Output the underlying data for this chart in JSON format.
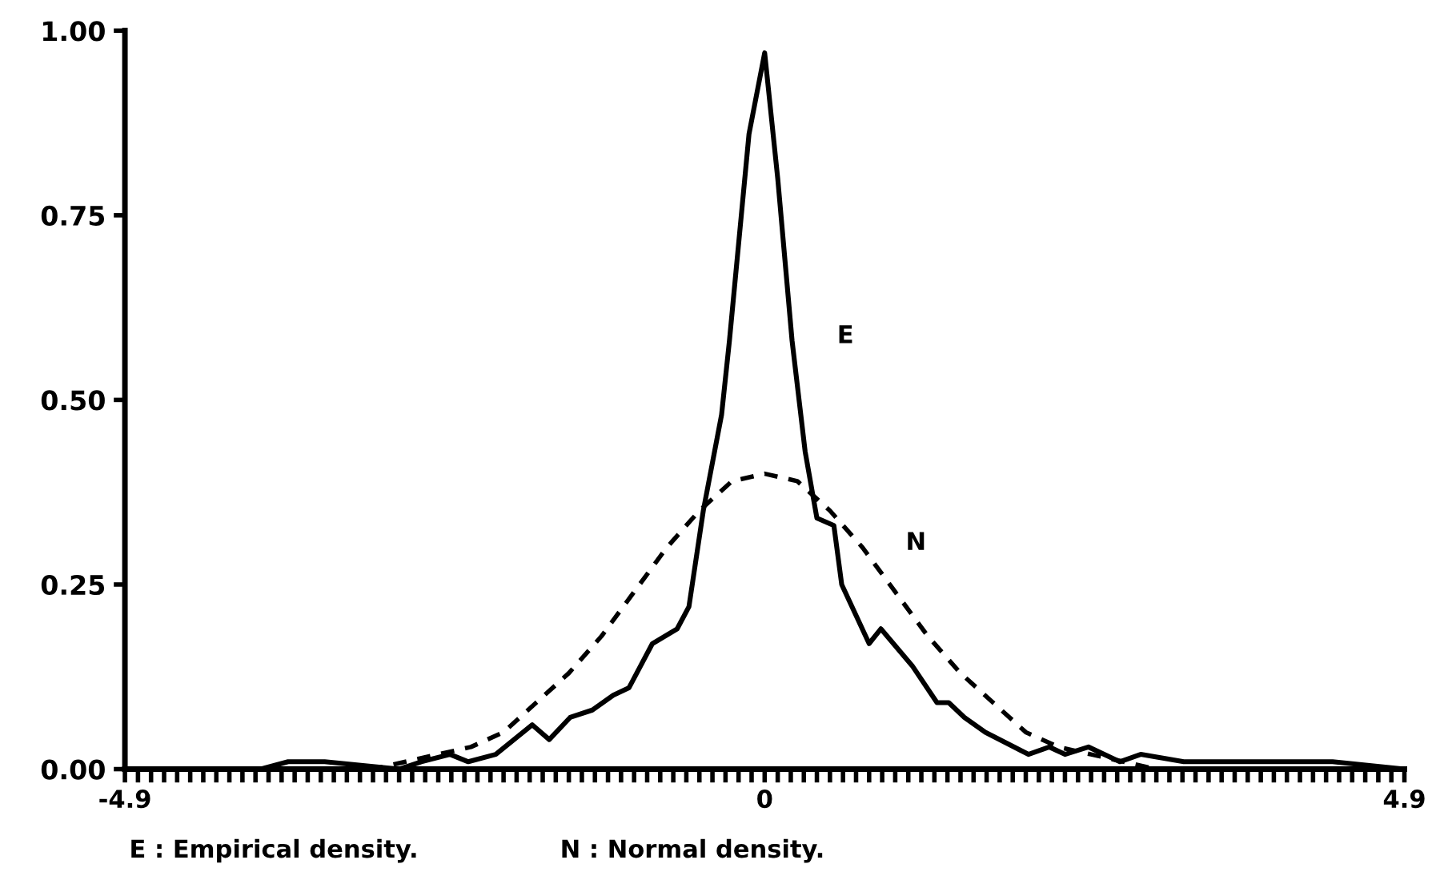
{
  "chart_data": {
    "type": "line",
    "xlim": [
      -4.9,
      4.9
    ],
    "ylim": [
      0,
      1.0
    ],
    "xticks": [
      {
        "value": -4.9,
        "label": "-4.9"
      },
      {
        "value": -4.8,
        "label": null
      },
      {
        "value": -4.7,
        "label": null
      },
      {
        "value": -4.6,
        "label": null
      },
      {
        "value": -4.5,
        "label": null
      },
      {
        "value": -4.4,
        "label": null
      },
      {
        "value": -4.3,
        "label": null
      },
      {
        "value": -4.2,
        "label": null
      },
      {
        "value": -4.1,
        "label": null
      },
      {
        "value": -4.0,
        "label": null
      },
      {
        "value": -3.9,
        "label": null
      },
      {
        "value": -3.8,
        "label": null
      },
      {
        "value": -3.7,
        "label": null
      },
      {
        "value": -3.6,
        "label": null
      },
      {
        "value": -3.5,
        "label": null
      },
      {
        "value": -3.4,
        "label": null
      },
      {
        "value": -3.3,
        "label": null
      },
      {
        "value": -3.2,
        "label": null
      },
      {
        "value": -3.1,
        "label": null
      },
      {
        "value": -3.0,
        "label": null
      },
      {
        "value": -2.9,
        "label": null
      },
      {
        "value": -2.8,
        "label": null
      },
      {
        "value": -2.7,
        "label": null
      },
      {
        "value": -2.6,
        "label": null
      },
      {
        "value": -2.5,
        "label": null
      },
      {
        "value": -2.4,
        "label": null
      },
      {
        "value": -2.3,
        "label": null
      },
      {
        "value": -2.2,
        "label": null
      },
      {
        "value": -2.1,
        "label": null
      },
      {
        "value": -2.0,
        "label": null
      },
      {
        "value": -1.9,
        "label": null
      },
      {
        "value": -1.8,
        "label": null
      },
      {
        "value": -1.7,
        "label": null
      },
      {
        "value": -1.6,
        "label": null
      },
      {
        "value": -1.5,
        "label": null
      },
      {
        "value": -1.4,
        "label": null
      },
      {
        "value": -1.3,
        "label": null
      },
      {
        "value": -1.2,
        "label": null
      },
      {
        "value": -1.1,
        "label": null
      },
      {
        "value": -1.0,
        "label": null
      },
      {
        "value": -0.9,
        "label": null
      },
      {
        "value": -0.8,
        "label": null
      },
      {
        "value": -0.7,
        "label": null
      },
      {
        "value": -0.6,
        "label": null
      },
      {
        "value": -0.5,
        "label": null
      },
      {
        "value": -0.4,
        "label": null
      },
      {
        "value": -0.3,
        "label": null
      },
      {
        "value": -0.2,
        "label": null
      },
      {
        "value": -0.1,
        "label": null
      },
      {
        "value": 0,
        "label": "0"
      },
      {
        "value": 0.1,
        "label": null
      },
      {
        "value": 0.2,
        "label": null
      },
      {
        "value": 0.3,
        "label": null
      },
      {
        "value": 0.4,
        "label": null
      },
      {
        "value": 0.5,
        "label": null
      },
      {
        "value": 0.6,
        "label": null
      },
      {
        "value": 0.7,
        "label": null
      },
      {
        "value": 0.8,
        "label": null
      },
      {
        "value": 0.9,
        "label": null
      },
      {
        "value": 1.0,
        "label": null
      },
      {
        "value": 1.1,
        "label": null
      },
      {
        "value": 1.2,
        "label": null
      },
      {
        "value": 1.3,
        "label": null
      },
      {
        "value": 1.4,
        "label": null
      },
      {
        "value": 1.5,
        "label": null
      },
      {
        "value": 1.6,
        "label": null
      },
      {
        "value": 1.7,
        "label": null
      },
      {
        "value": 1.8,
        "label": null
      },
      {
        "value": 1.9,
        "label": null
      },
      {
        "value": 2.0,
        "label": null
      },
      {
        "value": 2.1,
        "label": null
      },
      {
        "value": 2.2,
        "label": null
      },
      {
        "value": 2.3,
        "label": null
      },
      {
        "value": 2.4,
        "label": null
      },
      {
        "value": 2.5,
        "label": null
      },
      {
        "value": 2.6,
        "label": null
      },
      {
        "value": 2.7,
        "label": null
      },
      {
        "value": 2.8,
        "label": null
      },
      {
        "value": 2.9,
        "label": null
      },
      {
        "value": 3.0,
        "label": null
      },
      {
        "value": 3.1,
        "label": null
      },
      {
        "value": 3.2,
        "label": null
      },
      {
        "value": 3.3,
        "label": null
      },
      {
        "value": 3.4,
        "label": null
      },
      {
        "value": 3.5,
        "label": null
      },
      {
        "value": 3.6,
        "label": null
      },
      {
        "value": 3.7,
        "label": null
      },
      {
        "value": 3.8,
        "label": null
      },
      {
        "value": 3.9,
        "label": null
      },
      {
        "value": 4.0,
        "label": null
      },
      {
        "value": 4.1,
        "label": null
      },
      {
        "value": 4.2,
        "label": null
      },
      {
        "value": 4.3,
        "label": null
      },
      {
        "value": 4.4,
        "label": null
      },
      {
        "value": 4.5,
        "label": null
      },
      {
        "value": 4.6,
        "label": null
      },
      {
        "value": 4.7,
        "label": null
      },
      {
        "value": 4.8,
        "label": null
      },
      {
        "value": 4.9,
        "label": "4.9"
      }
    ],
    "yticks": [
      {
        "value": 0,
        "label": "0.00"
      },
      {
        "value": 0.25,
        "label": "0.25"
      },
      {
        "value": 0.5,
        "label": "0.50"
      },
      {
        "value": 0.75,
        "label": "0.75"
      },
      {
        "value": 1.0,
        "label": "1.00"
      }
    ],
    "grid": false,
    "legend": false,
    "marker": "none",
    "series": [
      {
        "name": "E",
        "color": "#000000",
        "line_style": "solid",
        "x": [
          -4.9,
          -3.86,
          -3.65,
          -3.37,
          -2.8,
          -2.63,
          -2.41,
          -2.27,
          -2.06,
          -1.78,
          -1.65,
          -1.49,
          -1.32,
          -1.16,
          -1.04,
          -0.86,
          -0.67,
          -0.58,
          -0.47,
          -0.33,
          -0.27,
          -0.12,
          0,
          0.1,
          0.21,
          0.31,
          0.4,
          0.53,
          0.59,
          0.8,
          0.89,
          1.13,
          1.32,
          1.41,
          1.53,
          1.69,
          2.02,
          2.18,
          2.3,
          2.48,
          2.72,
          2.88,
          3.21,
          3.82,
          4.35,
          4.9
        ],
        "values": [
          0,
          0,
          0.01,
          0.01,
          0,
          0.01,
          0.02,
          0.01,
          0.02,
          0.06,
          0.04,
          0.07,
          0.08,
          0.1,
          0.11,
          0.17,
          0.19,
          0.22,
          0.35,
          0.48,
          0.58,
          0.86,
          0.97,
          0.8,
          0.58,
          0.43,
          0.34,
          0.33,
          0.25,
          0.17,
          0.19,
          0.14,
          0.09,
          0.09,
          0.07,
          0.05,
          0.02,
          0.03,
          0.02,
          0.03,
          0.01,
          0.02,
          0.01,
          0.01,
          0.01,
          0
        ]
      },
      {
        "name": "N",
        "color": "#000000",
        "line_style": "dashed",
        "x": [
          -4.9,
          -3,
          -2.75,
          -2.5,
          -2.25,
          -2,
          -1.75,
          -1.5,
          -1.25,
          -1,
          -0.75,
          -0.5,
          -0.25,
          0,
          0.25,
          0.5,
          0.75,
          1,
          1.25,
          1.5,
          1.75,
          2,
          2.25,
          2.5,
          2.75,
          3,
          4.9
        ],
        "values": [
          0,
          0,
          0.01,
          0.02,
          0.03,
          0.05,
          0.09,
          0.13,
          0.18,
          0.24,
          0.3,
          0.35,
          0.39,
          0.4,
          0.39,
          0.35,
          0.3,
          0.24,
          0.18,
          0.13,
          0.09,
          0.05,
          0.03,
          0.02,
          0.01,
          0,
          0
        ]
      }
    ],
    "annotations": [
      "E : Empirical density.",
      "N : Normal density."
    ]
  }
}
